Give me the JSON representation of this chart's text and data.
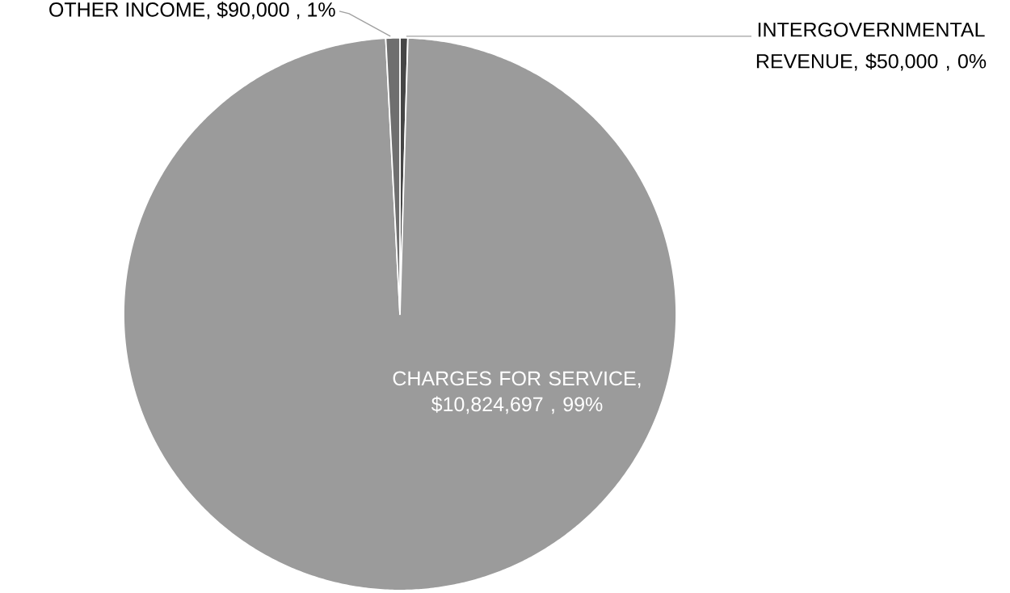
{
  "chart_data": {
    "type": "pie",
    "categories": [
      "INTERGOVERNMENTAL REVENUE",
      "CHARGES FOR SERVICE",
      "OTHER INCOME"
    ],
    "values": [
      50000,
      10824697,
      90000
    ],
    "colors": [
      "#464646",
      "#9b9b9b",
      "#6f6f6f"
    ],
    "value_labels": [
      ", $50,000 , 0%",
      ", $10,824,697 , 99%",
      ", $90,000 , 1%"
    ]
  }
}
